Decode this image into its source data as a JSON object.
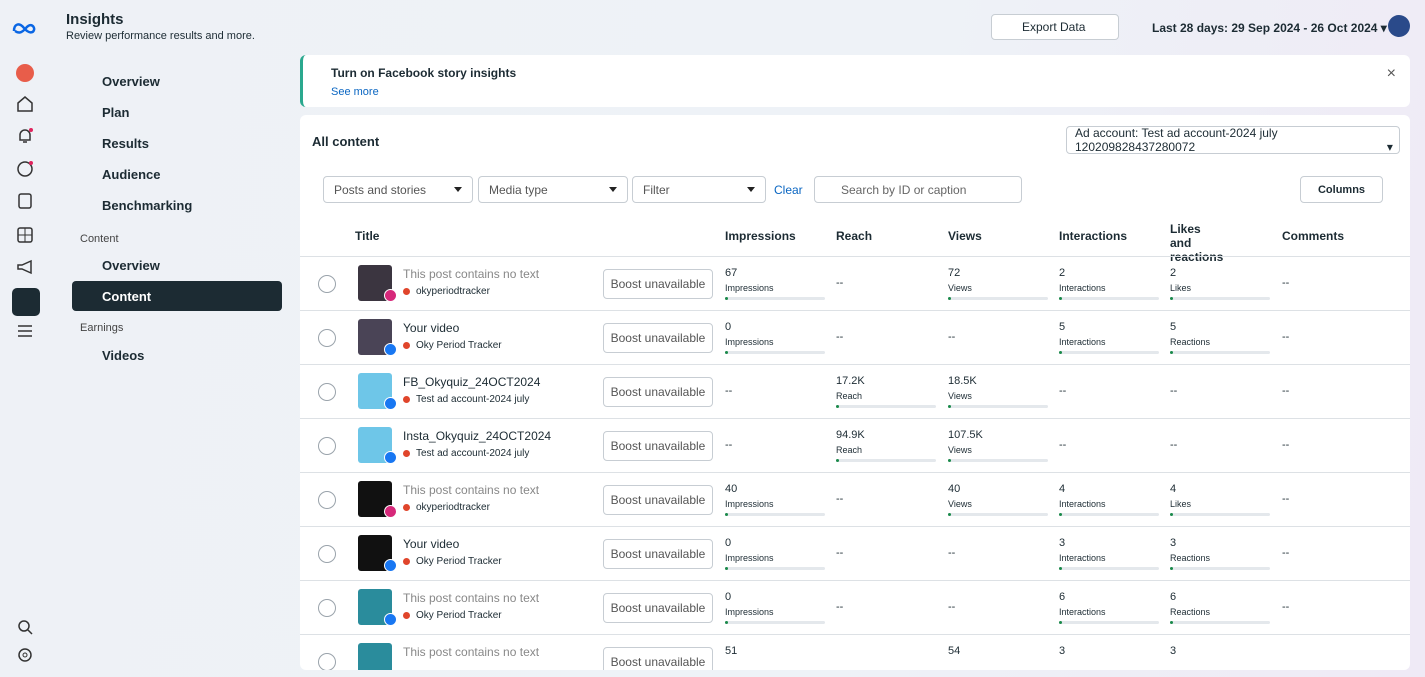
{
  "header": {
    "title": "Insights",
    "subtitle": "Review performance results and more.",
    "export": "Export Data",
    "date_range": "Last 28 days: 29 Sep 2024 - 26 Oct 2024"
  },
  "nav": {
    "items": [
      "Overview",
      "Plan",
      "Results",
      "Audience",
      "Benchmarking"
    ],
    "content_section": "Content",
    "content_items": [
      "Overview",
      "Content"
    ],
    "earnings_section": "Earnings",
    "earnings_items": [
      "Videos"
    ]
  },
  "banner": {
    "title": "Turn on Facebook story insights",
    "link": "See more"
  },
  "content": {
    "title": "All content",
    "ad_account": "Ad account: Test ad account-2024 july 120209828437280072",
    "filters": [
      "Posts and stories",
      "Media type",
      "Filter"
    ],
    "clear": "Clear",
    "search": "Search by ID or caption",
    "columns_button": "Columns"
  },
  "table": {
    "columns": [
      "Title",
      "Impressions",
      "Reach",
      "Views",
      "Interactions",
      "Likes and reactions",
      "Comments"
    ],
    "rows": [
      {
        "title": "This post contains no text",
        "account": "okyperiodtracker",
        "boost": "Boost unavailable",
        "cells": [
          {
            "value": "67",
            "label": "Impressions"
          },
          "--",
          {
            "value": "72",
            "label": "Views"
          },
          {
            "value": "2",
            "label": "Interactions"
          },
          {
            "value": "2",
            "label": "Likes"
          },
          "--"
        ]
      },
      {
        "title": "Your video",
        "account": "Oky Period Tracker",
        "boost": "Boost unavailable",
        "cells": [
          {
            "value": "0",
            "label": "Impressions"
          },
          "--",
          "--",
          {
            "value": "5",
            "label": "Interactions"
          },
          {
            "value": "5",
            "label": "Reactions"
          },
          "--"
        ]
      },
      {
        "title": "FB_Okyquiz_24OCT2024",
        "account": "Test ad account-2024 july",
        "boost": "Boost unavailable",
        "cells": [
          "--",
          {
            "value": "17.2K",
            "label": "Reach"
          },
          {
            "value": "18.5K",
            "label": "Views"
          },
          "--",
          "--",
          "--"
        ]
      },
      {
        "title": "Insta_Okyquiz_24OCT2024",
        "account": "Test ad account-2024 july",
        "boost": "Boost unavailable",
        "cells": [
          "--",
          {
            "value": "94.9K",
            "label": "Reach"
          },
          {
            "value": "107.5K",
            "label": "Views"
          },
          "--",
          "--",
          "--"
        ]
      },
      {
        "title": "This post contains no text",
        "account": "okyperiodtracker",
        "boost": "Boost unavailable",
        "cells": [
          {
            "value": "40",
            "label": "Impressions"
          },
          "--",
          {
            "value": "40",
            "label": "Views"
          },
          {
            "value": "4",
            "label": "Interactions"
          },
          {
            "value": "4",
            "label": "Likes"
          },
          "--"
        ]
      },
      {
        "title": "Your video",
        "account": "Oky Period Tracker",
        "boost": "Boost unavailable",
        "cells": [
          {
            "value": "0",
            "label": "Impressions"
          },
          "--",
          "--",
          {
            "value": "3",
            "label": "Interactions"
          },
          {
            "value": "3",
            "label": "Reactions"
          },
          "--"
        ]
      },
      {
        "title": "This post contains no text",
        "account": "Oky Period Tracker",
        "boost": "Boost unavailable",
        "cells": [
          {
            "value": "0",
            "label": "Impressions"
          },
          "--",
          "--",
          {
            "value": "6",
            "label": "Interactions"
          },
          {
            "value": "6",
            "label": "Reactions"
          },
          "--"
        ]
      },
      {
        "title": "This post contains no text",
        "boost": "Boost unavailable",
        "cells": [
          {
            "value": "51"
          },
          null,
          {
            "value": "54"
          },
          {
            "value": "3"
          },
          {
            "value": "3"
          },
          null
        ]
      }
    ]
  }
}
